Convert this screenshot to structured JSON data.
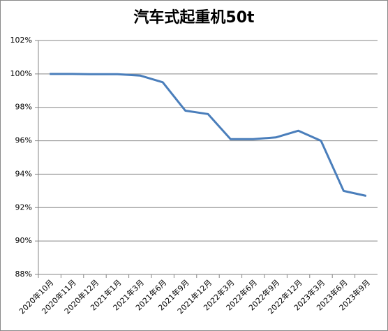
{
  "chart_data": {
    "type": "line",
    "title": "汽车式起重机50t",
    "categories": [
      "2020年10月",
      "2020年11月",
      "2020年12月",
      "2021年1月",
      "2021年3月",
      "2021年6月",
      "2021年9月",
      "2021年12月",
      "2022年3月",
      "2022年6月",
      "2022年9月",
      "2022年12月",
      "2023年3月",
      "2023年6月",
      "2023年9月"
    ],
    "values": [
      100.0,
      100.0,
      99.98,
      99.98,
      99.9,
      99.5,
      97.8,
      97.6,
      96.1,
      96.1,
      96.2,
      96.6,
      96.0,
      93.0,
      92.7
    ],
    "color": "#4a7ebb",
    "ylim": [
      88,
      102
    ],
    "yticks": [
      {
        "value": 88,
        "label": "88%"
      },
      {
        "value": 90,
        "label": "90%"
      },
      {
        "value": 92,
        "label": "92%"
      },
      {
        "value": 94,
        "label": "94%"
      },
      {
        "value": 96,
        "label": "96%"
      },
      {
        "value": 98,
        "label": "98%"
      },
      {
        "value": 100,
        "label": "100%"
      },
      {
        "value": 102,
        "label": "102%"
      }
    ],
    "grid": true
  }
}
